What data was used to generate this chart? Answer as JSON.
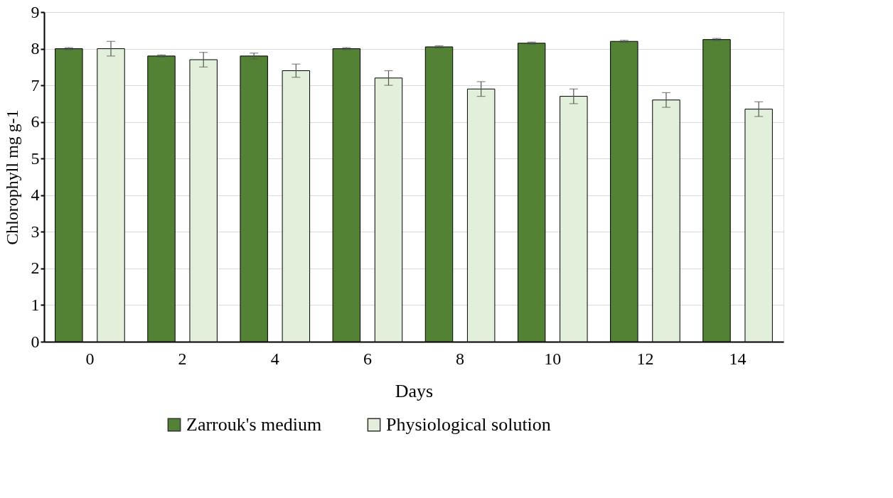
{
  "chart_data": {
    "type": "bar",
    "xlabel": "Days",
    "ylabel": "Chlorophyll mg g-1",
    "categories": [
      "0",
      "2",
      "4",
      "6",
      "8",
      "10",
      "12",
      "14"
    ],
    "series": [
      {
        "name": "Zarrouk's medium",
        "color": "#548235",
        "values": [
          8.0,
          7.8,
          7.8,
          8.0,
          8.05,
          8.15,
          8.2,
          8.25
        ],
        "errors": [
          0.03,
          0.03,
          0.08,
          0.03,
          0.03,
          0.03,
          0.03,
          0.03
        ]
      },
      {
        "name": "Physiological solution",
        "color": "#e2efda",
        "values": [
          8.0,
          7.7,
          7.4,
          7.2,
          6.9,
          6.7,
          6.6,
          6.35
        ],
        "errors": [
          0.2,
          0.2,
          0.18,
          0.2,
          0.2,
          0.2,
          0.2,
          0.2
        ]
      }
    ],
    "ylim": [
      0,
      9
    ],
    "yticks": [
      0,
      1,
      2,
      3,
      4,
      5,
      6,
      7,
      8,
      9
    ],
    "grid": "y",
    "legend": "bottom"
  }
}
